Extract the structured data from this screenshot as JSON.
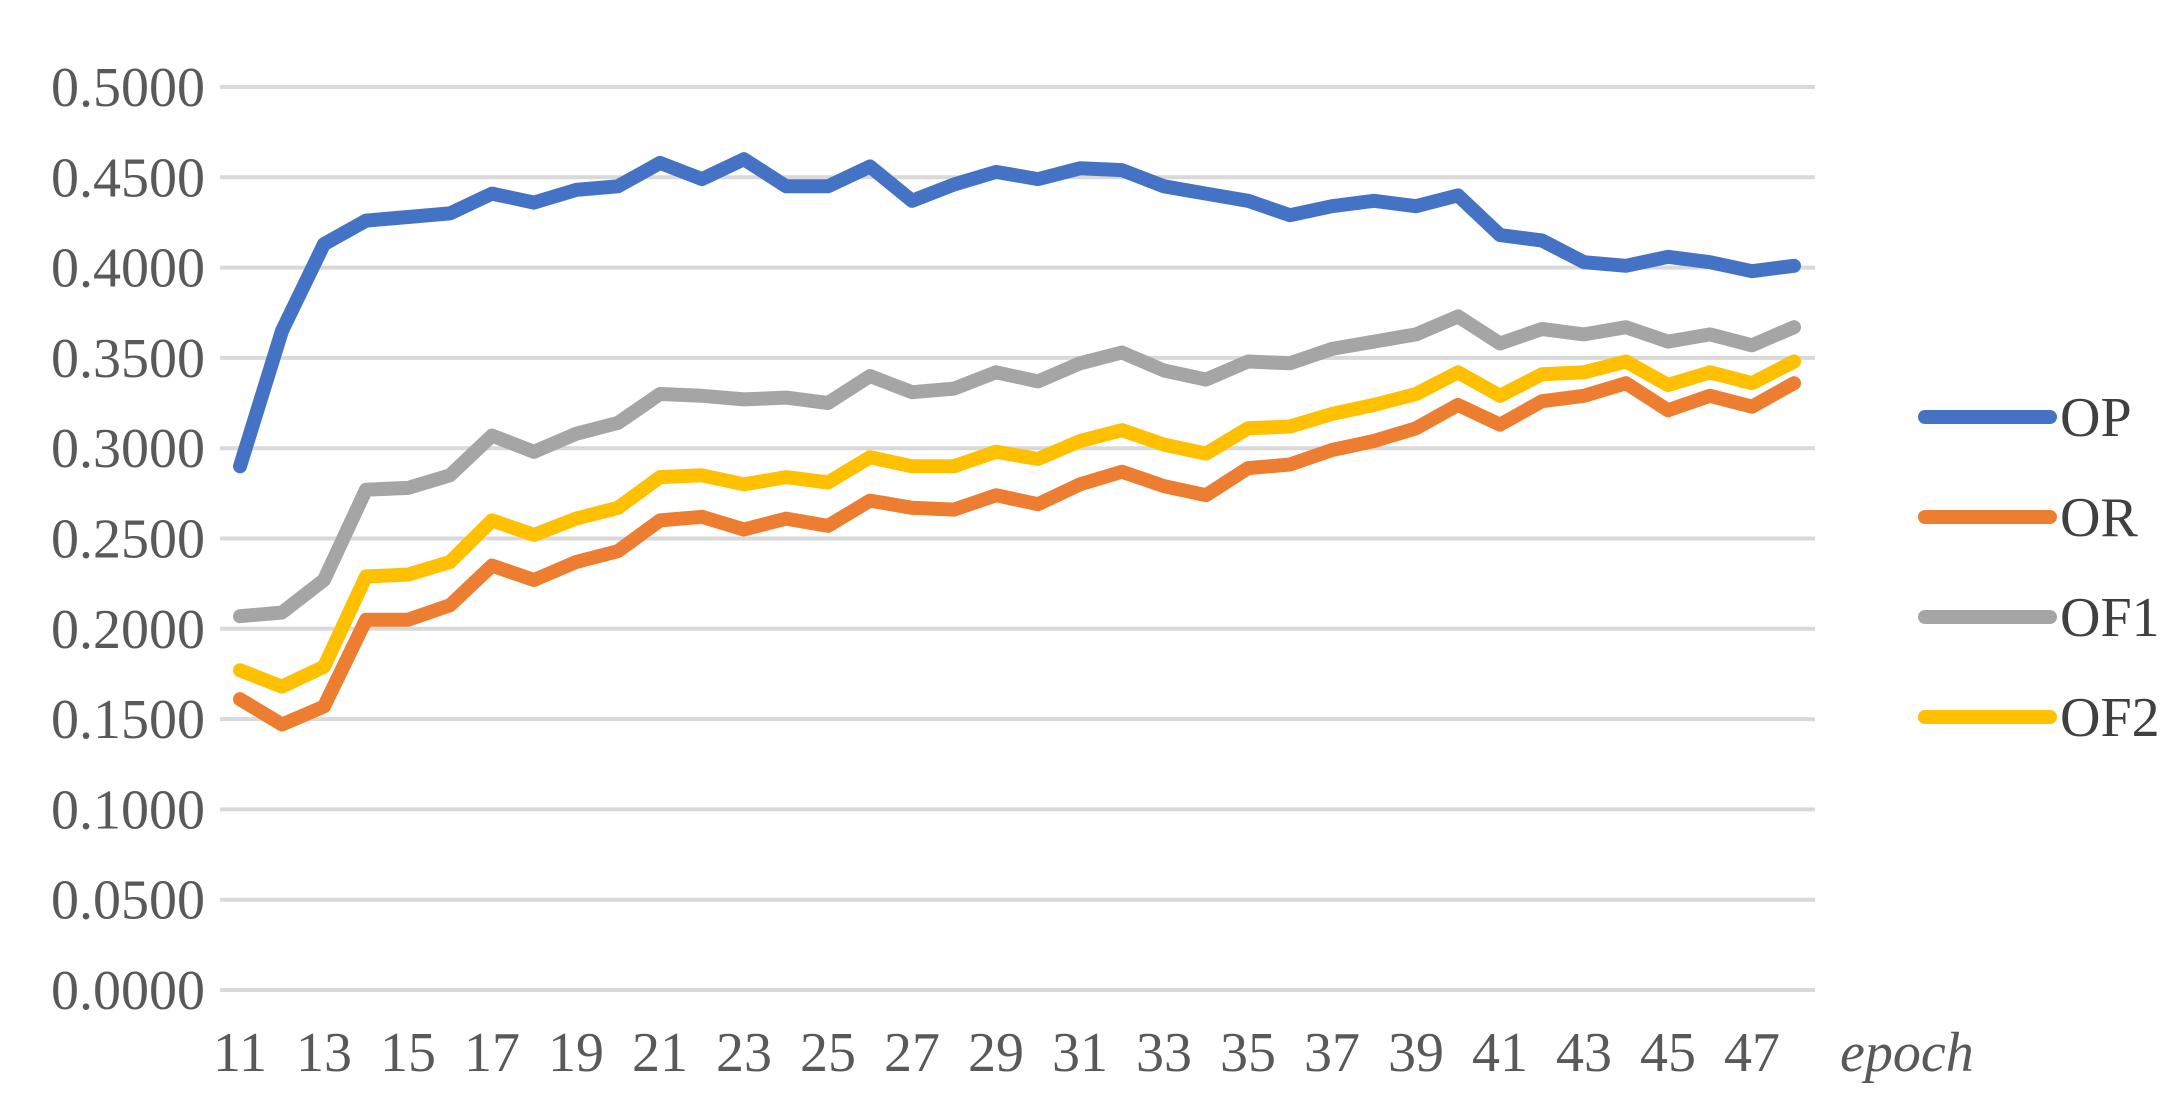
{
  "chart_data": {
    "type": "line",
    "xlabel": "epoch",
    "ylabel": "",
    "ylim": [
      0,
      0.5
    ],
    "y_ticks": [
      "0.0000",
      "0.0500",
      "0.1000",
      "0.1500",
      "0.2000",
      "0.2500",
      "0.3000",
      "0.3500",
      "0.4000",
      "0.4500",
      "0.5000"
    ],
    "x": [
      11,
      12,
      13,
      14,
      15,
      16,
      17,
      18,
      19,
      20,
      21,
      22,
      23,
      24,
      25,
      26,
      27,
      28,
      29,
      30,
      31,
      32,
      33,
      34,
      35,
      36,
      37,
      38,
      39,
      40,
      41,
      42,
      43,
      44,
      45,
      46,
      47,
      48
    ],
    "x_tick_labels": [
      "11",
      "13",
      "15",
      "17",
      "19",
      "21",
      "23",
      "25",
      "27",
      "29",
      "31",
      "33",
      "35",
      "37",
      "39",
      "41",
      "43",
      "45",
      "47"
    ],
    "grid": true,
    "legend_position": "right",
    "series": [
      {
        "name": "OP",
        "color": "#4472C4",
        "values": [
          0.29,
          0.365,
          0.413,
          0.426,
          0.428,
          0.43,
          0.441,
          0.436,
          0.443,
          0.445,
          0.458,
          0.449,
          0.46,
          0.445,
          0.445,
          0.456,
          0.437,
          0.446,
          0.453,
          0.449,
          0.455,
          0.454,
          0.445,
          0.441,
          0.437,
          0.429,
          0.434,
          0.437,
          0.434,
          0.44,
          0.418,
          0.415,
          0.403,
          0.401,
          0.406,
          0.403,
          0.398,
          0.401
        ]
      },
      {
        "name": "OR",
        "color": "#ED7D31",
        "values": [
          0.161,
          0.147,
          0.157,
          0.205,
          0.205,
          0.213,
          0.235,
          0.227,
          0.237,
          0.243,
          0.26,
          0.262,
          0.255,
          0.261,
          0.257,
          0.271,
          0.267,
          0.266,
          0.274,
          0.269,
          0.28,
          0.287,
          0.279,
          0.274,
          0.289,
          0.291,
          0.299,
          0.304,
          0.311,
          0.324,
          0.313,
          0.326,
          0.329,
          0.336,
          0.321,
          0.329,
          0.323,
          0.336
        ]
      },
      {
        "name": "OF1",
        "color": "#A5A5A5",
        "values": [
          0.207,
          0.209,
          0.227,
          0.277,
          0.278,
          0.285,
          0.307,
          0.298,
          0.308,
          0.314,
          0.33,
          0.329,
          0.327,
          0.328,
          0.325,
          0.34,
          0.331,
          0.333,
          0.342,
          0.337,
          0.347,
          0.353,
          0.343,
          0.338,
          0.348,
          0.347,
          0.355,
          0.359,
          0.363,
          0.373,
          0.358,
          0.366,
          0.363,
          0.367,
          0.359,
          0.363,
          0.357,
          0.367
        ]
      },
      {
        "name": "OF2",
        "color": "#FFC000",
        "values": [
          0.177,
          0.168,
          0.179,
          0.229,
          0.23,
          0.237,
          0.26,
          0.252,
          0.261,
          0.267,
          0.284,
          0.285,
          0.28,
          0.284,
          0.281,
          0.295,
          0.29,
          0.29,
          0.298,
          0.294,
          0.304,
          0.31,
          0.302,
          0.297,
          0.311,
          0.312,
          0.319,
          0.324,
          0.33,
          0.342,
          0.329,
          0.341,
          0.342,
          0.348,
          0.335,
          0.342,
          0.336,
          0.348
        ]
      }
    ]
  }
}
